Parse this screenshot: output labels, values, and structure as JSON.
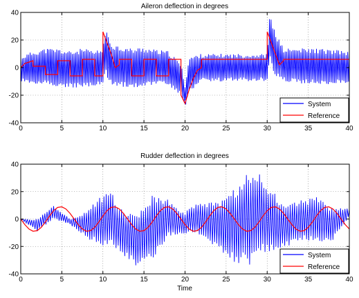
{
  "chart_data": [
    {
      "type": "line",
      "title": "Aileron deflection in degrees",
      "xlabel": "",
      "ylabel": "",
      "xlim": [
        0,
        40
      ],
      "ylim": [
        -40,
        40
      ],
      "xticks": [
        0,
        5,
        10,
        15,
        20,
        25,
        30,
        35,
        40
      ],
      "yticks": [
        -40,
        -20,
        0,
        20,
        40
      ],
      "grid": true,
      "legend_position": "bottom-right",
      "series": [
        {
          "name": "System",
          "color": "#0000ff",
          "x": [
            0,
            1.5,
            3,
            4.5,
            6,
            7.5,
            9,
            10,
            10.3,
            11,
            12,
            13.5,
            15,
            16.5,
            18,
            19.5,
            20,
            20.5,
            22,
            24,
            26,
            28,
            30,
            30.3,
            31,
            32,
            34,
            36,
            38,
            40
          ],
          "upper": [
            8,
            12,
            14,
            14,
            12,
            14,
            12,
            14,
            28,
            18,
            16,
            14,
            15,
            13,
            12,
            3,
            -12,
            8,
            10,
            10,
            10,
            10,
            10,
            38,
            26,
            14,
            14,
            14,
            13,
            12
          ],
          "lower": [
            -10,
            -12,
            -13,
            -14,
            -15,
            -15,
            -14,
            -13,
            -5,
            -12,
            -14,
            -15,
            -14,
            -13,
            -13,
            -20,
            -30,
            -18,
            -10,
            -10,
            -10,
            -10,
            -10,
            5,
            -8,
            -10,
            -12,
            -12,
            -12,
            -12
          ]
        },
        {
          "name": "Reference",
          "color": "#ff0000",
          "x": [
            0,
            0.5,
            1.5,
            1.5,
            3,
            3,
            4.5,
            4.5,
            6,
            6,
            7.5,
            7.5,
            9,
            9,
            10,
            10,
            11,
            11.5,
            12,
            12,
            13.5,
            13.5,
            15,
            15,
            16.5,
            16.5,
            18,
            18,
            19.5,
            19.5,
            20,
            20,
            20.5,
            21,
            21.5,
            22,
            22,
            24,
            24,
            26,
            26,
            28,
            28,
            30,
            30,
            31,
            31.5,
            32,
            32,
            34,
            34,
            36,
            36,
            38,
            38,
            40
          ],
          "y": [
            0,
            3,
            5,
            1,
            1,
            -5,
            -5,
            5,
            5,
            -6,
            -6,
            6,
            6,
            -6,
            -6,
            26,
            10,
            0,
            2,
            6,
            6,
            -6,
            -6,
            6,
            6,
            -6,
            -6,
            6,
            6,
            -20,
            -26,
            -26,
            -16,
            -8,
            -2,
            0,
            6,
            6,
            6,
            6,
            6,
            6,
            6,
            6,
            26,
            10,
            2,
            5,
            6,
            6,
            6,
            6,
            6,
            6,
            6,
            6
          ]
        }
      ]
    },
    {
      "type": "line",
      "title": "Rudder deflection in degrees",
      "xlabel": "Time",
      "ylabel": "",
      "xlim": [
        0,
        40
      ],
      "ylim": [
        -40,
        40
      ],
      "xticks": [
        0,
        5,
        10,
        15,
        20,
        25,
        30,
        35,
        40
      ],
      "yticks": [
        -40,
        -20,
        0,
        20,
        40
      ],
      "grid": true,
      "legend_position": "bottom-right",
      "series": [
        {
          "name": "System",
          "color": "#0000ff",
          "x": [
            0,
            2,
            4,
            6,
            8,
            10,
            11,
            12,
            14,
            16,
            18,
            20,
            20.5,
            22,
            24,
            26,
            28,
            28.5,
            30,
            32,
            34,
            36,
            38,
            40
          ],
          "upper": [
            0,
            0,
            10,
            0,
            6,
            18,
            20,
            8,
            2,
            18,
            14,
            4,
            10,
            12,
            12,
            22,
            36,
            37,
            26,
            10,
            14,
            16,
            8,
            8
          ],
          "lower": [
            0,
            -9,
            0,
            -4,
            -14,
            -20,
            -18,
            -24,
            -34,
            -30,
            -12,
            -12,
            -10,
            -12,
            -22,
            -32,
            -34,
            -28,
            -24,
            -22,
            -15,
            -18,
            -16,
            2
          ]
        },
        {
          "name": "Reference",
          "color": "#ff0000",
          "x": [
            0,
            0.5,
            1,
            1.5,
            2,
            2.5,
            3,
            3.5,
            4,
            4.5,
            5,
            5.5,
            6,
            6.5,
            7,
            7.5,
            8,
            8.5,
            9,
            9.5,
            10,
            10.5,
            11,
            11.5,
            12,
            12.5,
            13,
            13.5,
            14,
            14.5,
            15,
            15.5,
            16,
            16.5,
            17,
            17.5,
            18,
            18.5,
            19,
            19.5,
            20,
            20.5,
            21,
            21.5,
            22,
            22.5,
            23,
            23.5,
            24,
            24.5,
            25,
            25.5,
            26,
            26.5,
            27,
            27.5,
            28,
            28.5,
            29,
            29.5,
            30,
            30.5,
            31,
            31.5,
            32,
            32.5,
            33,
            33.5,
            34,
            34.5,
            35,
            35.5,
            36,
            36.5,
            37,
            37.5,
            38,
            38.5,
            39,
            39.5,
            40
          ],
          "y": [
            0.0,
            -4.1,
            -7.3,
            -8.9,
            -8.5,
            -6.1,
            -2.2,
            2.2,
            6.1,
            8.5,
            8.9,
            7.3,
            4.1,
            0.0,
            -4.1,
            -7.3,
            -8.9,
            -8.5,
            -6.1,
            -2.2,
            2.2,
            6.1,
            8.5,
            8.9,
            7.3,
            4.1,
            0.0,
            -4.1,
            -7.3,
            -8.9,
            -8.5,
            -6.1,
            -2.2,
            2.2,
            6.1,
            8.5,
            8.9,
            7.3,
            4.1,
            0.0,
            -4.1,
            -7.3,
            -8.9,
            -8.5,
            -6.1,
            -2.2,
            2.2,
            6.1,
            8.5,
            8.9,
            7.3,
            4.1,
            0.0,
            -4.1,
            -7.3,
            -8.9,
            -8.5,
            -6.1,
            -2.2,
            2.2,
            6.1,
            8.5,
            8.9,
            7.3,
            4.1,
            0.0,
            -4.1,
            -7.3,
            -8.9,
            -8.5,
            -6.1,
            -2.2,
            2.2,
            6.1,
            8.5,
            8.9,
            7.3,
            4.1,
            0.0,
            -4.1,
            -7.3
          ]
        }
      ]
    }
  ]
}
